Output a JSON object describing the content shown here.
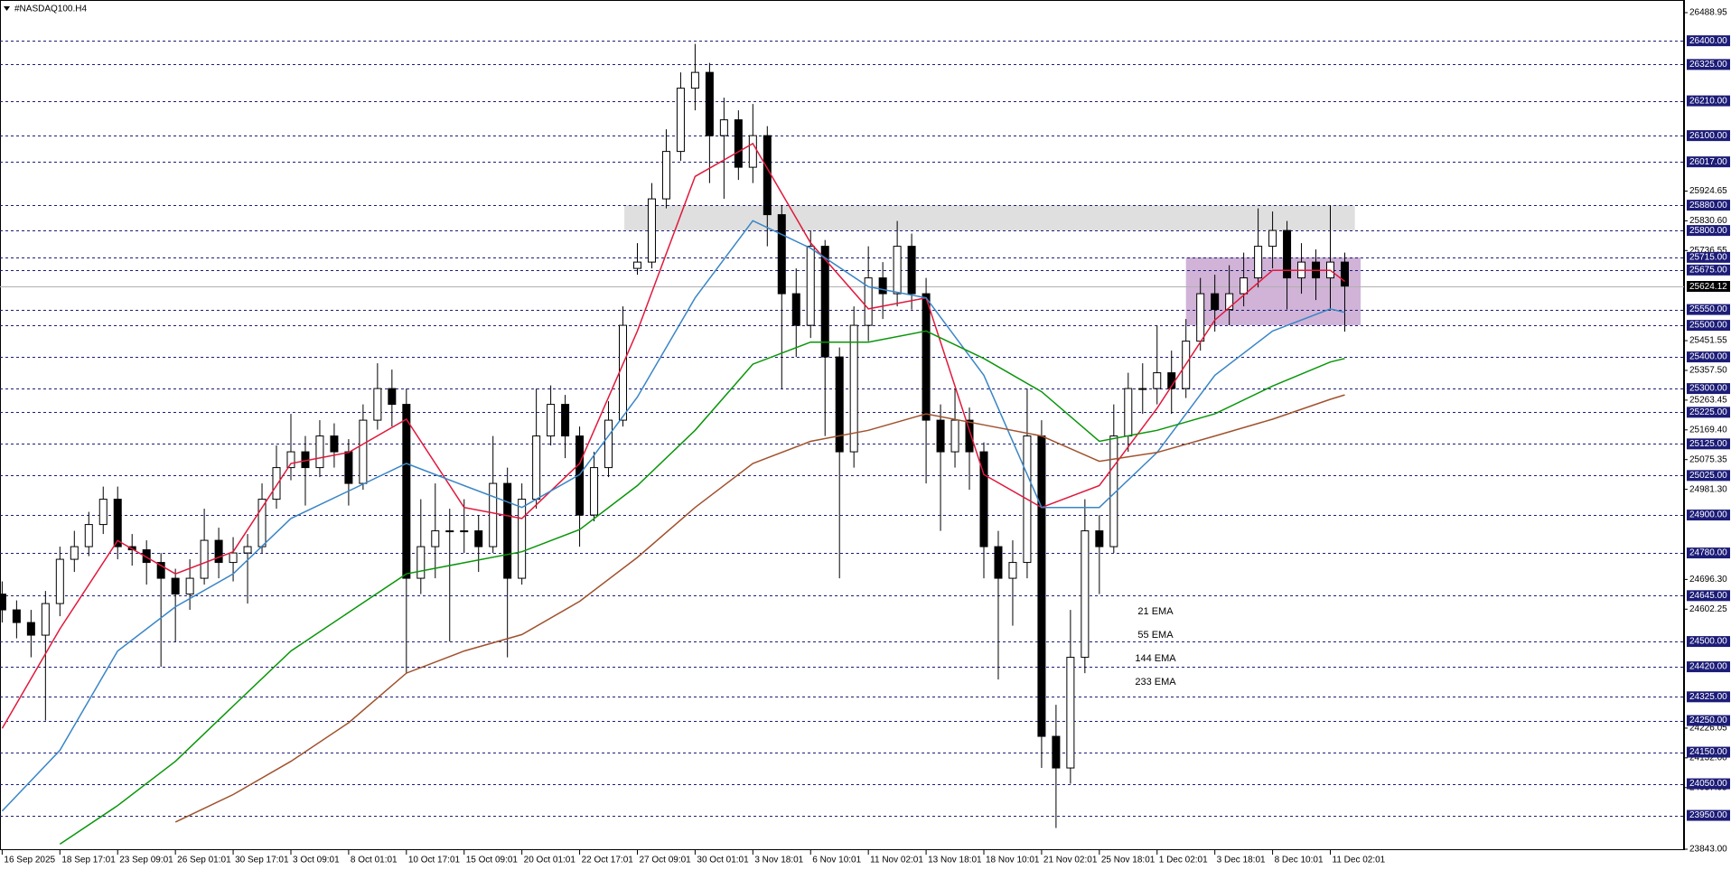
{
  "chart_data": {
    "type": "candlestick",
    "title": "#NASDAQ100.H4",
    "xlim": [
      -0.15,
      116.5
    ],
    "xticks": [
      {
        "value": 0,
        "label": "16 Sep 2025"
      },
      {
        "value": 4,
        "label": "18 Sep 17:01"
      },
      {
        "value": 8,
        "label": "23 Sep 09:01"
      },
      {
        "value": 12,
        "label": "26 Sep 01:01"
      },
      {
        "value": 16,
        "label": "30 Sep 17:01"
      },
      {
        "value": 20,
        "label": "3 Oct 09:01"
      },
      {
        "value": 24,
        "label": "8 Oct 01:01"
      },
      {
        "value": 28,
        "label": "10 Oct 17:01"
      },
      {
        "value": 32,
        "label": "15 Oct 09:01"
      },
      {
        "value": 36,
        "label": "20 Oct 01:01"
      },
      {
        "value": 40,
        "label": "22 Oct 17:01"
      },
      {
        "value": 44,
        "label": "27 Oct 09:01"
      },
      {
        "value": 48,
        "label": "30 Oct 01:01"
      },
      {
        "value": 52,
        "label": "3 Nov 18:01"
      },
      {
        "value": 56,
        "label": "6 Nov 10:01"
      },
      {
        "value": 60,
        "label": "11 Nov 02:01"
      },
      {
        "value": 64,
        "label": "13 Nov 18:01"
      },
      {
        "value": 68,
        "label": "18 Nov 10:01"
      },
      {
        "value": 72,
        "label": "21 Nov 02:01"
      },
      {
        "value": 76,
        "label": "25 Nov 18:01"
      },
      {
        "value": 80,
        "label": "1 Dec 02:01"
      },
      {
        "value": 84,
        "label": "3 Dec 18:01"
      },
      {
        "value": 88,
        "label": "8 Dec 10:01"
      },
      {
        "value": 92,
        "label": "11 Dec 02:01"
      }
    ],
    "ylim": [
      23843,
      26488.95
    ],
    "yticks": [
      26488.95,
      25924.65,
      {
        "value": 25830.6,
        "label": "25830.60"
      },
      25736.55,
      25451.55,
      {
        "value": 25357.5,
        "label": "25357.50"
      },
      25263.45,
      {
        "value": 25169.4,
        "label": "25169.40"
      },
      25075.35,
      {
        "value": 24981.3,
        "label": "24981.30"
      },
      {
        "value": 24696.3,
        "label": "24696.30"
      },
      24602.25,
      24226.05,
      {
        "value": 24132,
        "label": "24132.00"
      },
      24037.95,
      {
        "value": 23843,
        "label": "23843.00"
      }
    ],
    "levels": [
      {
        "value": 26400,
        "label": "26400.00"
      },
      {
        "value": 26325,
        "label": "26325.00"
      },
      {
        "value": 26210,
        "label": "26210.00"
      },
      {
        "value": 26100,
        "label": "26100.00"
      },
      {
        "value": 26017,
        "label": "26017.00"
      },
      {
        "value": 25880,
        "label": "25880.00"
      },
      {
        "value": 25800,
        "label": "25800.00"
      },
      {
        "value": 25715,
        "label": "25715.00"
      },
      {
        "value": 25675,
        "label": "25675.00"
      },
      {
        "value": 25550,
        "label": "25550.00"
      },
      {
        "value": 25500,
        "label": "25500.00"
      },
      {
        "value": 25400,
        "label": "25400.00"
      },
      {
        "value": 25300,
        "label": "25300.00"
      },
      {
        "value": 25225,
        "label": "25225.00"
      },
      {
        "value": 25125,
        "label": "25125.00"
      },
      {
        "value": 25025,
        "label": "25025.00"
      },
      {
        "value": 24900,
        "label": "24900.00"
      },
      {
        "value": 24780,
        "label": "24780.00"
      },
      {
        "value": 24645,
        "label": "24645.00"
      },
      {
        "value": 24500,
        "label": "24500.00"
      },
      {
        "value": 24420,
        "label": "24420.00"
      },
      {
        "value": 24325,
        "label": "24325.00"
      },
      {
        "value": 24250,
        "label": "24250.00"
      },
      {
        "value": 24150,
        "label": "24150.00"
      },
      {
        "value": 24050,
        "label": "24050.00"
      },
      {
        "value": 23950,
        "label": "23950.00"
      }
    ],
    "level_color": "#1c1c78",
    "current_price": 25624.12,
    "up_color": "#ffffff",
    "down_color": "#000000",
    "open": [
      24650,
      24600,
      24560,
      24520,
      24620,
      24760,
      24800,
      24870,
      24950,
      24800,
      24790,
      24750,
      24700,
      24650,
      24700,
      24820,
      24750,
      24780,
      24800,
      24950,
      25050,
      25100,
      25050,
      25150,
      25100,
      25000,
      25200,
      25300,
      25250,
      24700,
      24800,
      24850,
      24850,
      24850,
      24800,
      25000,
      24700,
      24950,
      25150,
      25250,
      25150,
      24900,
      25050,
      25200,
      25680,
      25700,
      25900,
      26050,
      26250,
      26300,
      26100,
      26150,
      26000,
      26100,
      25850,
      25600,
      25500,
      25750,
      25400,
      25100,
      25500,
      25650,
      25600,
      25750,
      25600,
      25200,
      25100,
      25200,
      25100,
      24800,
      24700,
      24750,
      25150,
      24200,
      24100,
      24450,
      24850,
      24800,
      25150,
      25300,
      25300,
      25350,
      25300,
      25450,
      25600,
      25550,
      25600,
      25650,
      25750,
      25800,
      25650,
      25700,
      25650,
      25700
    ],
    "high": [
      24690,
      24630,
      24600,
      24660,
      24800,
      24850,
      24910,
      24990,
      24990,
      24840,
      24820,
      24780,
      24730,
      24760,
      24920,
      24860,
      24830,
      24840,
      25000,
      25120,
      25220,
      25150,
      25200,
      25190,
      25140,
      25250,
      25380,
      25360,
      25300,
      24950,
      25000,
      24920,
      24950,
      24900,
      25150,
      25050,
      25000,
      25300,
      25310,
      25280,
      25180,
      25100,
      25260,
      25560,
      25760,
      25950,
      26120,
      26300,
      26390,
      26330,
      26220,
      26180,
      26200,
      26130,
      25880,
      25680,
      25800,
      25770,
      25430,
      25560,
      25750,
      25700,
      25830,
      25790,
      25650,
      25250,
      25300,
      25240,
      25130,
      24850,
      24820,
      25300,
      25200,
      24300,
      24600,
      24950,
      24900,
      25250,
      25350,
      25380,
      25500,
      25420,
      25520,
      25650,
      25660,
      25690,
      25730,
      25870,
      25860,
      25830,
      25760,
      25740,
      25880,
      25730
    ],
    "low": [
      24560,
      24510,
      24450,
      24250,
      24580,
      24720,
      24770,
      24840,
      24760,
      24740,
      24680,
      24420,
      24500,
      24600,
      24680,
      24700,
      24690,
      24620,
      24780,
      24920,
      25010,
      24930,
      25020,
      25050,
      24930,
      24980,
      25170,
      25180,
      24400,
      24650,
      24700,
      24500,
      24780,
      24720,
      24780,
      24450,
      24680,
      24920,
      25120,
      25080,
      24800,
      24880,
      25020,
      25180,
      25660,
      25680,
      25870,
      26020,
      26180,
      25950,
      25900,
      25960,
      25950,
      25750,
      25300,
      25400,
      25460,
      25150,
      24700,
      25050,
      25450,
      25520,
      25560,
      25550,
      25000,
      24850,
      25050,
      24980,
      24700,
      24380,
      24550,
      24700,
      24100,
      23910,
      24050,
      24400,
      24650,
      24780,
      25100,
      25220,
      25250,
      25220,
      25270,
      25420,
      25480,
      25500,
      25560,
      25620,
      25680,
      25550,
      25600,
      25580,
      25550,
      25480
    ],
    "close": [
      24600,
      24560,
      24520,
      24620,
      24760,
      24800,
      24870,
      24950,
      24800,
      24790,
      24750,
      24700,
      24650,
      24700,
      24820,
      24750,
      24780,
      24800,
      24950,
      25050,
      25100,
      25050,
      25150,
      25100,
      25000,
      25200,
      25300,
      25250,
      24700,
      24800,
      24850,
      24850,
      24850,
      24800,
      25000,
      24700,
      24950,
      25150,
      25250,
      25150,
      24900,
      25050,
      25200,
      25500,
      25700,
      25900,
      26050,
      26250,
      26300,
      26100,
      26150,
      26000,
      26100,
      25850,
      25600,
      25500,
      25750,
      25400,
      25100,
      25500,
      25650,
      25600,
      25750,
      25600,
      25200,
      25100,
      25200,
      25100,
      24800,
      24700,
      24750,
      25150,
      24200,
      24100,
      24450,
      24850,
      24800,
      25150,
      25300,
      25300,
      25350,
      25300,
      25450,
      25600,
      25550,
      25600,
      25650,
      25750,
      25800,
      25650,
      25700,
      25650,
      25700,
      25624.12
    ],
    "series": [
      {
        "name": "21 EMA",
        "color": "#e0193c",
        "x": [
          0,
          4,
          8,
          12,
          16,
          20,
          24,
          28,
          32,
          36,
          40,
          44,
          48,
          52,
          56,
          60,
          64,
          68,
          72,
          76,
          80,
          84,
          88,
          92,
          93
        ],
        "values": [
          24225,
          24540,
          24819,
          24714,
          24784,
          25063,
          25098,
          25203,
          24924,
          24889,
          25063,
          25482,
          25971,
          26075,
          25761,
          25552,
          25587,
          25028,
          24924,
          24993,
          25238,
          25517,
          25674,
          25674,
          25639
        ]
      },
      {
        "name": "55 EMA",
        "color": "#3a86c6",
        "x": [
          0,
          4,
          8,
          12,
          16,
          20,
          24,
          28,
          32,
          36,
          40,
          44,
          48,
          52,
          56,
          60,
          64,
          68,
          72,
          76,
          80,
          84,
          88,
          92,
          93
        ],
        "values": [
          23964,
          24156,
          24470,
          24610,
          24714,
          24889,
          24976,
          25063,
          24993,
          24924,
          25028,
          25273,
          25587,
          25831,
          25744,
          25622,
          25587,
          25342,
          24924,
          24924,
          25098,
          25342,
          25482,
          25552,
          25541
        ]
      },
      {
        "name": "144 EMA",
        "color": "#0a960a",
        "x": [
          4,
          8,
          12,
          16,
          20,
          24,
          28,
          32,
          36,
          40,
          44,
          48,
          52,
          56,
          60,
          64,
          68,
          72,
          76,
          80,
          84,
          88,
          92,
          93
        ],
        "values": [
          23859,
          23981,
          24121,
          24296,
          24470,
          24592,
          24714,
          24749,
          24784,
          24854,
          24993,
          25168,
          25377,
          25447,
          25447,
          25482,
          25395,
          25290,
          25133,
          25168,
          25220,
          25308,
          25384,
          25395
        ]
      },
      {
        "name": "233 EMA",
        "color": "#a0522d",
        "x": [
          12,
          16,
          20,
          24,
          28,
          32,
          36,
          40,
          44,
          48,
          52,
          56,
          60,
          64,
          68,
          72,
          76,
          80,
          84,
          88,
          92,
          93
        ],
        "values": [
          23929,
          24016,
          24121,
          24243,
          24400,
          24470,
          24522,
          24627,
          24766,
          24924,
          25063,
          25133,
          25168,
          25220,
          25185,
          25150,
          25070,
          25098,
          25150,
          25203,
          25266,
          25280
        ]
      }
    ],
    "zones": [
      {
        "x": [
          43.1,
          93.7
        ],
        "range": [
          25800,
          25880
        ],
        "color": "#d9d9d9"
      },
      {
        "x": [
          82,
          94.1
        ],
        "range": [
          25500,
          25715
        ],
        "color": "#c8a6d0"
      }
    ]
  }
}
